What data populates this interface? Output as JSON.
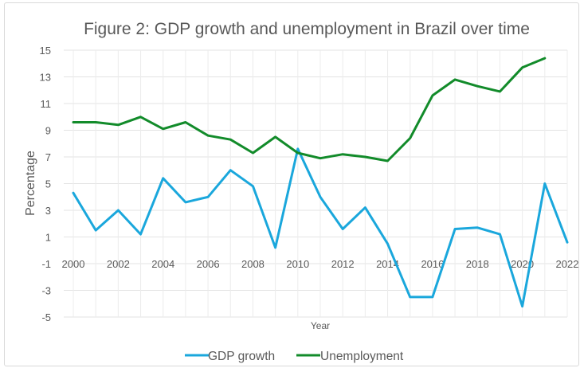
{
  "chart_data": {
    "type": "line",
    "title": "Figure 2: GDP growth and unemployment in Brazil over time",
    "xlabel": "Year",
    "ylabel": "Percentage",
    "ylim": [
      -5,
      15
    ],
    "yticks": [
      15,
      13,
      11,
      9,
      7,
      5,
      3,
      1,
      -1,
      -3,
      -5
    ],
    "xticks": [
      2000,
      2002,
      2004,
      2006,
      2008,
      2010,
      2012,
      2014,
      2016,
      2018,
      2020,
      2022
    ],
    "x": [
      2000,
      2001,
      2002,
      2003,
      2004,
      2005,
      2006,
      2007,
      2008,
      2009,
      2010,
      2011,
      2012,
      2013,
      2014,
      2015,
      2016,
      2017,
      2018,
      2019,
      2020,
      2021,
      2022
    ],
    "grid": true,
    "legend_position": "bottom",
    "series": [
      {
        "name": "GDP growth",
        "color": "#1aa7dc",
        "values": [
          4.3,
          1.5,
          3.0,
          1.2,
          5.4,
          3.6,
          4.0,
          6.0,
          4.8,
          0.2,
          7.6,
          4.0,
          1.6,
          3.2,
          0.5,
          -3.5,
          -3.5,
          1.6,
          1.7,
          1.2,
          -4.2,
          5.0,
          0.6
        ]
      },
      {
        "name": "Unemployment",
        "color": "#128b2a",
        "values": [
          9.6,
          9.6,
          9.4,
          10.0,
          9.1,
          9.6,
          8.6,
          8.3,
          7.3,
          8.5,
          7.3,
          6.9,
          7.2,
          7.0,
          6.7,
          8.4,
          11.6,
          12.8,
          12.3,
          11.9,
          13.7,
          14.4,
          null
        ]
      }
    ]
  }
}
